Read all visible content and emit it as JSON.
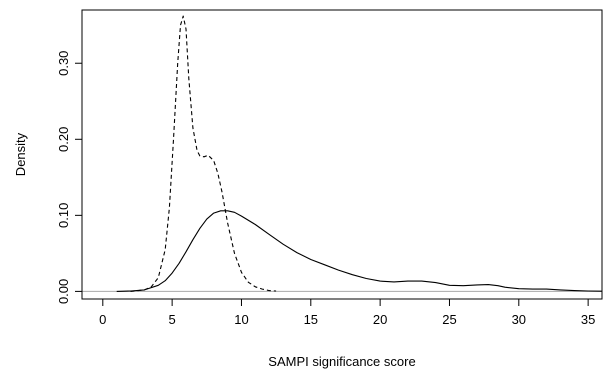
{
  "chart_data": {
    "type": "line",
    "title": "",
    "xlabel": "SAMPI significance score",
    "ylabel": "Density",
    "xlim": [
      -1.5,
      36
    ],
    "ylim": [
      -0.01,
      0.37
    ],
    "x_ticks": [
      "0",
      "5",
      "10",
      "15",
      "20",
      "25",
      "30",
      "35"
    ],
    "y_ticks": [
      "0.00",
      "0.10",
      "0.20",
      "0.30"
    ],
    "grid": false,
    "legend": "none",
    "baseline": {
      "y": 0,
      "color": "#aaaaaa"
    },
    "series": [
      {
        "style": "solid",
        "color": "#000000",
        "x": [
          1,
          2,
          3,
          4,
          4.5,
          5,
          5.5,
          6,
          6.5,
          7,
          7.5,
          8,
          8.5,
          9,
          9.5,
          10,
          11,
          12,
          13,
          14,
          15,
          16,
          17,
          18,
          19,
          20,
          21,
          22,
          23,
          24,
          25,
          26,
          27,
          27.8,
          28.5,
          29,
          30,
          31,
          32,
          33,
          34,
          35,
          36
        ],
        "y": [
          0.0,
          0.0005,
          0.002,
          0.008,
          0.014,
          0.024,
          0.037,
          0.052,
          0.068,
          0.083,
          0.095,
          0.103,
          0.106,
          0.106,
          0.104,
          0.099,
          0.088,
          0.075,
          0.062,
          0.051,
          0.042,
          0.035,
          0.028,
          0.022,
          0.017,
          0.0135,
          0.0125,
          0.0135,
          0.0135,
          0.0115,
          0.008,
          0.0075,
          0.0085,
          0.009,
          0.0075,
          0.0055,
          0.0035,
          0.003,
          0.003,
          0.002,
          0.001,
          0.0005,
          0.0003
        ]
      },
      {
        "style": "dashed",
        "color": "#000000",
        "x": [
          2,
          3,
          3.5,
          4,
          4.5,
          4.8,
          5.1,
          5.4,
          5.6,
          5.8,
          6,
          6.2,
          6.5,
          6.8,
          7,
          7.3,
          7.6,
          8,
          8.3,
          8.6,
          9,
          9.5,
          10,
          10.5,
          11,
          11.5,
          12,
          12.5
        ],
        "y": [
          0.0,
          0.002,
          0.006,
          0.018,
          0.055,
          0.11,
          0.2,
          0.3,
          0.35,
          0.362,
          0.345,
          0.28,
          0.215,
          0.185,
          0.178,
          0.177,
          0.179,
          0.172,
          0.155,
          0.13,
          0.09,
          0.05,
          0.025,
          0.012,
          0.006,
          0.003,
          0.001,
          0.0005
        ]
      }
    ]
  }
}
